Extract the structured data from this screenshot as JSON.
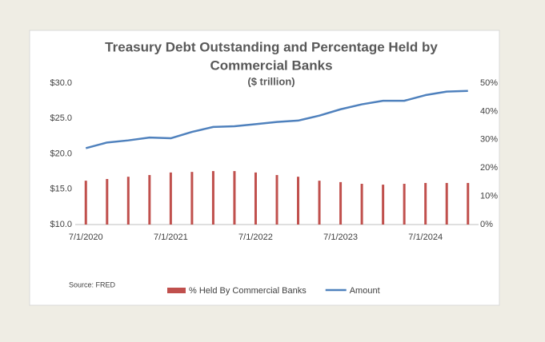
{
  "chart_data": {
    "type": "bar_line",
    "title": [
      "Treasury Debt Outstanding and Percentage Held by",
      "Commercial Banks"
    ],
    "subtitle": "($ trillion)",
    "source": "Source: FRED",
    "categories": [
      "7/1/2020",
      null,
      null,
      null,
      "7/1/2021",
      null,
      null,
      null,
      "7/1/2022",
      null,
      null,
      null,
      "7/1/2023",
      null,
      null,
      null,
      "7/1/2024",
      null,
      null
    ],
    "series": [
      {
        "name": "% Held By Commercial Banks",
        "type": "bar",
        "axis": "y2",
        "color": "#c0504d",
        "values": [
          15.5,
          16.1,
          16.9,
          17.5,
          18.4,
          18.6,
          18.9,
          18.9,
          18.4,
          17.5,
          16.9,
          15.5,
          15.0,
          14.4,
          14.1,
          14.4,
          14.7,
          14.7,
          14.7
        ]
      },
      {
        "name": "Amount",
        "type": "line",
        "color": "#4f81bd",
        "values": [
          20.8,
          21.6,
          21.9,
          22.3,
          22.2,
          23.1,
          23.8,
          23.9,
          24.2,
          24.5,
          24.7,
          25.4,
          26.3,
          27.0,
          27.5,
          27.5,
          28.3,
          28.8,
          28.9
        ]
      }
    ],
    "ylim": [
      10,
      30
    ],
    "yticks": [
      {
        "value": 10,
        "label": "$10.0"
      },
      {
        "value": 15,
        "label": "$15.0"
      },
      {
        "value": 20,
        "label": "$20.0"
      },
      {
        "value": 25,
        "label": "$25.0"
      },
      {
        "value": 30,
        "label": "$30.0"
      }
    ],
    "y2lim": [
      0,
      50
    ],
    "y2ticks": [
      {
        "value": 0,
        "label": "0%"
      },
      {
        "value": 10,
        "label": "10%"
      },
      {
        "value": 20,
        "label": "20%"
      },
      {
        "value": 30,
        "label": "30%"
      },
      {
        "value": 40,
        "label": "40%"
      },
      {
        "value": 50,
        "label": "50%"
      }
    ]
  }
}
